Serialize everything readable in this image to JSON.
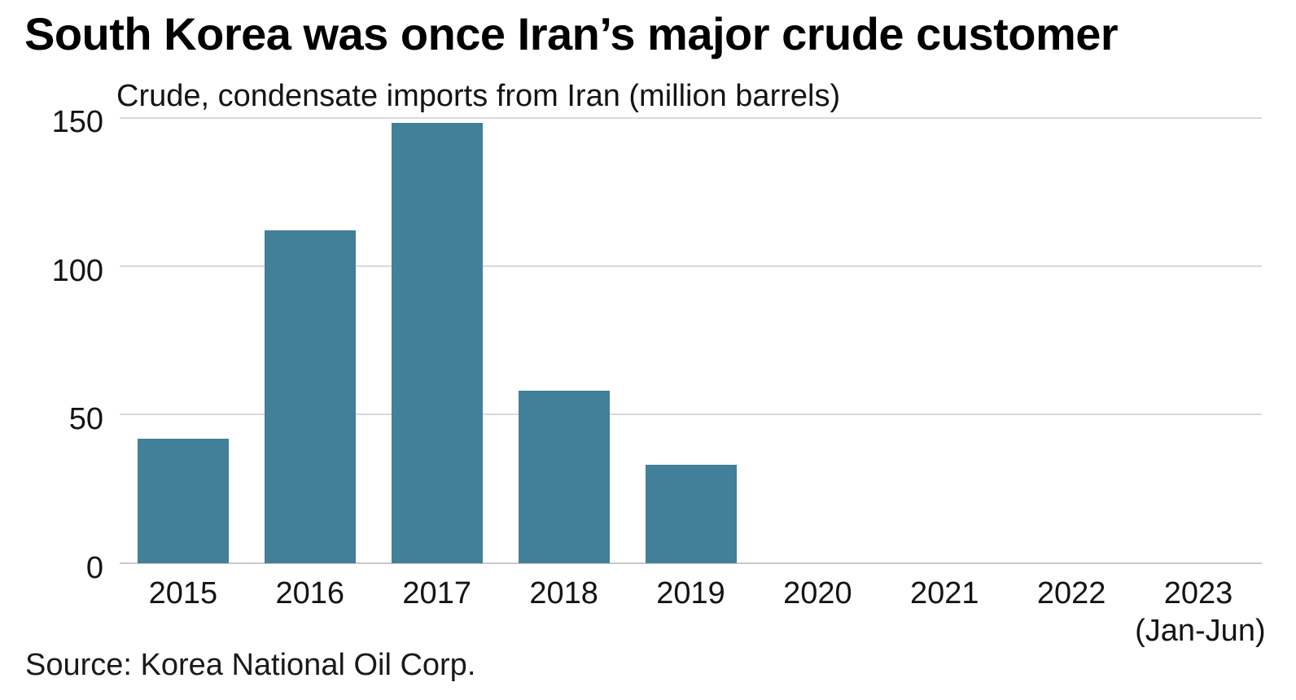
{
  "chart_data": {
    "type": "bar",
    "title": "South Korea was once Iran’s major crude customer",
    "subtitle": "Crude, condensate imports from Iran (million barrels)",
    "source": "Source: Korea National Oil Corp.",
    "categories": [
      "2015",
      "2016",
      "2017",
      "2018",
      "2019",
      "2020",
      "2021",
      "2022",
      "2023"
    ],
    "category_sublabels": [
      "",
      "",
      "",
      "",
      "",
      "",
      "",
      "",
      "(Jan-Jun)"
    ],
    "values": [
      42,
      112,
      148,
      58,
      33,
      0,
      0,
      0,
      0
    ],
    "xlabel": "",
    "ylabel": "million barrels",
    "ylim": [
      0,
      150
    ],
    "yticks": [
      0,
      50,
      100,
      150
    ],
    "grid": "horizontal",
    "legend": "none",
    "bar_color": "#427f99",
    "gridline_color": "#d9d9d9",
    "baseline_color": "#c9c9c9",
    "text_color": "#141414",
    "background_color": "#ffffff"
  }
}
